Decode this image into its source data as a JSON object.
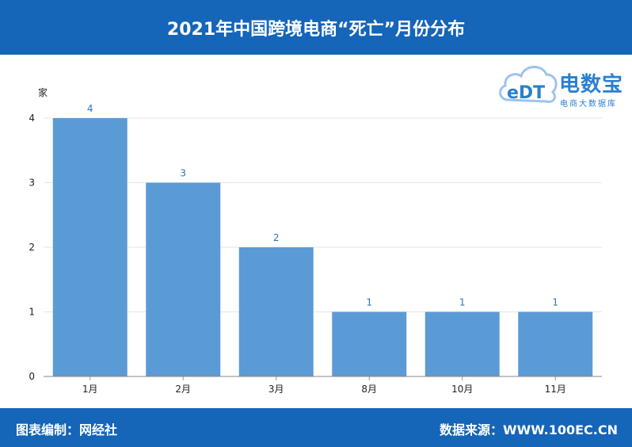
{
  "header": {
    "title": "2021年中国跨境电商“死亡”月份分布"
  },
  "logo": {
    "name": "电数宝",
    "mark": "eDT",
    "subtitle": "电商大数据库"
  },
  "footer": {
    "credit": "图表编制：网经社",
    "source": "数据来源：WWW.100EC.CN"
  },
  "colors": {
    "bar": "#5b9bd5",
    "header": "#1565b8",
    "label": "#2e75b6"
  },
  "chart_data": {
    "type": "bar",
    "title": "2021年中国跨境电商“死亡”月份分布",
    "ylabel": "家",
    "xlabel": "",
    "categories": [
      "1月",
      "2月",
      "3月",
      "8月",
      "10月",
      "11月"
    ],
    "values": [
      4,
      3,
      2,
      1,
      1,
      1
    ],
    "ylim": [
      0,
      4
    ],
    "yticks": [
      0,
      1,
      2,
      3,
      4
    ],
    "grid": true,
    "legend": "none"
  }
}
